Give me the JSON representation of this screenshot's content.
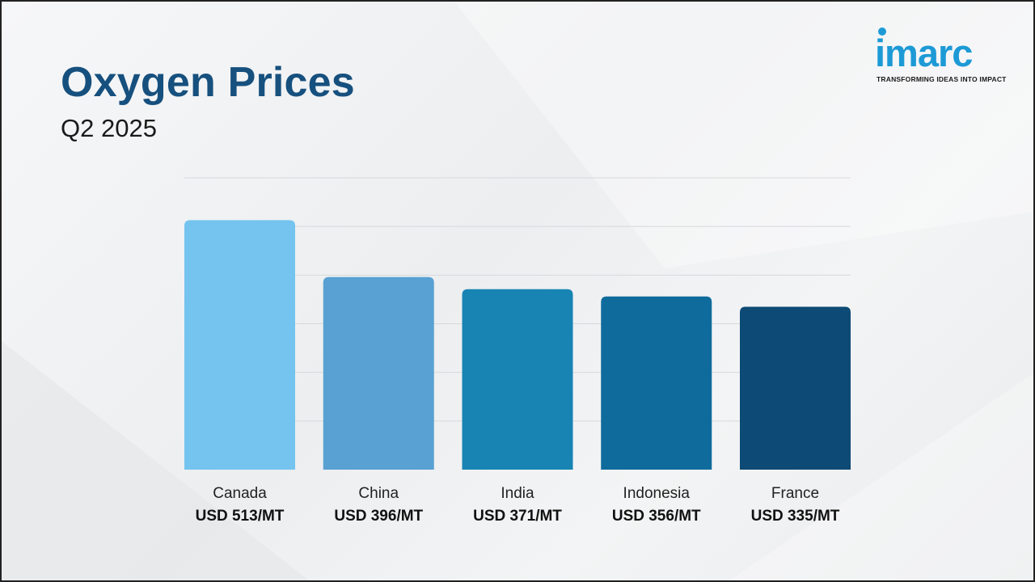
{
  "header": {
    "title": "Oxygen Prices",
    "subtitle": "Q2 2025"
  },
  "logo": {
    "word": "imarc",
    "tagline": "TRANSFORMING IDEAS INTO IMPACT",
    "color": "#1d9ad6"
  },
  "chart_data": {
    "type": "bar",
    "title": "Oxygen Prices",
    "subtitle": "Q2 2025",
    "categories": [
      "Canada",
      "China",
      "India",
      "Indonesia",
      "France"
    ],
    "values": [
      513,
      396,
      371,
      356,
      335
    ],
    "value_labels": [
      "USD 513/MT",
      "USD 396/MT",
      "USD 371/MT",
      "USD 356/MT",
      "USD 335/MT"
    ],
    "colors": [
      "#74c4ef",
      "#58a1d2",
      "#1784b4",
      "#0f6b9c",
      "#0d4a75"
    ],
    "unit": "USD/MT",
    "ylim": [
      0,
      600
    ],
    "grid": true,
    "grid_step": 100,
    "xlabel": "",
    "ylabel": ""
  }
}
